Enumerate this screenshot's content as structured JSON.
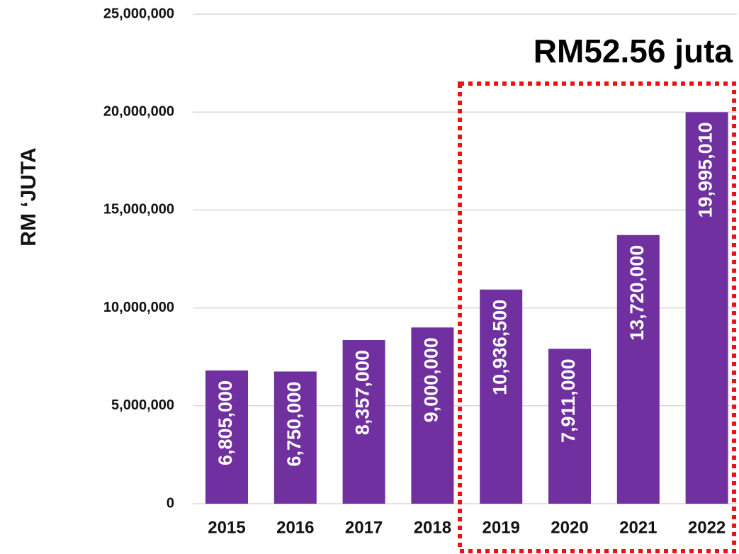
{
  "chart_data": {
    "type": "bar",
    "y_label": "RM ‘JUTA",
    "annotation": "RM52.56 juta",
    "categories": [
      "2015",
      "2016",
      "2017",
      "2018",
      "2019",
      "2020",
      "2021",
      "2022"
    ],
    "values": [
      6805000,
      6750000,
      8357000,
      9000000,
      10936500,
      7911000,
      13720000,
      19995010
    ],
    "value_labels": [
      "6,805,000",
      "6,750,000",
      "8,357,000",
      "9,000,000",
      "10,936,500",
      "7,911,000",
      "13,720,000",
      "19,995,010"
    ],
    "color": "#7030a0",
    "ylim": [
      0,
      25000000
    ],
    "yticks": [
      0,
      {
        "value": 5000000,
        "label": "5,000,000"
      },
      {
        "value": 10000000,
        "label": "10,000,000"
      },
      {
        "value": 15000000,
        "label": "15,000,000"
      },
      {
        "value": 20000000,
        "label": "20,000,000"
      },
      {
        "value": 25000000,
        "label": "25,000,000"
      }
    ],
    "grid": true
  }
}
